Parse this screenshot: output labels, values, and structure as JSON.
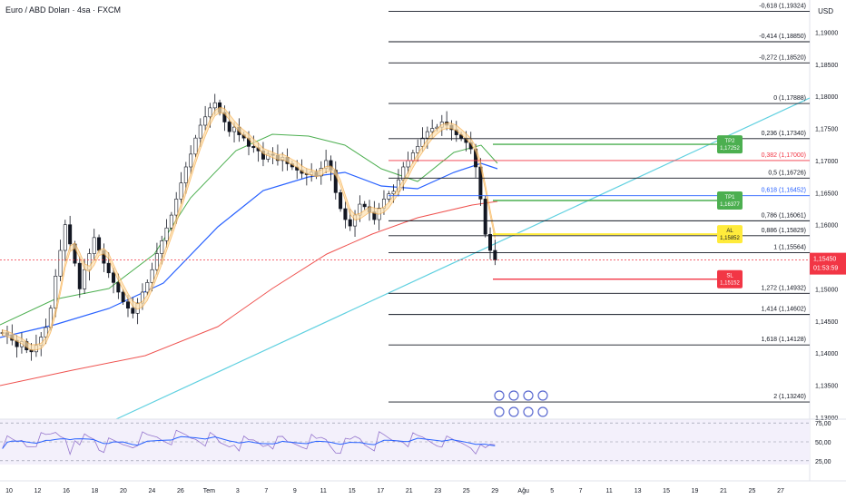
{
  "header": {
    "symbol_title": "Euro / ABD Doları · 4sa · FXCM",
    "currency": "USD"
  },
  "price_axis": {
    "ticks": [
      "1,19000",
      "1,18500",
      "1,18000",
      "1,17500",
      "1,17000",
      "1,16500",
      "1,16000",
      "1,15500",
      "1,15000",
      "1,14500",
      "1,14000",
      "1,13500",
      "1,13000"
    ],
    "current_price": "1,15450",
    "countdown": "01:53:59",
    "current_color": "#f23645"
  },
  "time_axis": {
    "labels": [
      "10",
      "12",
      "16",
      "18",
      "20",
      "24",
      "26",
      "Tem",
      "3",
      "7",
      "9",
      "11",
      "15",
      "17",
      "21",
      "23",
      "25",
      "29",
      "Ağu",
      "5",
      "7",
      "11",
      "13",
      "15",
      "19",
      "21",
      "25",
      "27"
    ]
  },
  "fib_levels": [
    {
      "label": "-0,618 (1,19324)",
      "value": 1.19324,
      "color": "#131722"
    },
    {
      "label": "-0,414 (1,18850)",
      "value": 1.1885,
      "color": "#131722"
    },
    {
      "label": "-0,272 (1,18520)",
      "value": 1.1852,
      "color": "#131722"
    },
    {
      "label": "0 (1,17888)",
      "value": 1.17888,
      "color": "#131722"
    },
    {
      "label": "0,236 (1,17340)",
      "value": 1.1734,
      "color": "#131722"
    },
    {
      "label": "0,382 (1,17000)",
      "value": 1.17,
      "color": "#f23645"
    },
    {
      "label": "0,5 (1,16726)",
      "value": 1.16726,
      "color": "#131722"
    },
    {
      "label": "0,618 (1,16452)",
      "value": 1.16452,
      "color": "#2962ff"
    },
    {
      "label": "0,786 (1,16061)",
      "value": 1.16061,
      "color": "#131722"
    },
    {
      "label": "0,886 (1,15829)",
      "value": 1.15829,
      "color": "#131722"
    },
    {
      "label": "1 (1,15564)",
      "value": 1.15564,
      "color": "#131722"
    },
    {
      "label": "1,272 (1,14932)",
      "value": 1.14932,
      "color": "#131722"
    },
    {
      "label": "1,414 (1,14602)",
      "value": 1.14602,
      "color": "#131722"
    },
    {
      "label": "1,618 (1,14128)",
      "value": 1.14128,
      "color": "#131722"
    },
    {
      "label": "2 (1,13240)",
      "value": 1.1324,
      "color": "#131722"
    }
  ],
  "trade_labels": [
    {
      "name": "tp2",
      "label": "TP2",
      "price": "1,17252",
      "value": 1.17252,
      "color": "#4caf50",
      "text_color": "#ffffff"
    },
    {
      "name": "tp1",
      "label": "TP1",
      "price": "1,16377",
      "value": 1.16377,
      "color": "#4caf50",
      "text_color": "#ffffff"
    },
    {
      "name": "al",
      "label": "AL",
      "price": "1,15852",
      "value": 1.15852,
      "color": "#ffeb3b",
      "text_color": "#131722"
    },
    {
      "name": "sl",
      "label": "SL",
      "price": "1,15152",
      "value": 1.15152,
      "color": "#f23645",
      "text_color": "#ffffff"
    }
  ],
  "rsi_axis": {
    "ticks": [
      "75,00",
      "50,00",
      "25,00"
    ]
  },
  "colors": {
    "ema_fast": "#f7a435",
    "ema_mid": "#4caf50",
    "ema_slow": "#2962ff",
    "ema_long": "#ef5350",
    "trendline": "#5fd0e0",
    "rsi": "#9575cd",
    "rsi_ma": "#2962ff"
  },
  "chart_data": {
    "type": "candlestick",
    "ylim": [
      1.13,
      1.195
    ],
    "close_series": [
      1.1432,
      1.1428,
      1.142,
      1.141,
      1.1418,
      1.1405,
      1.1402,
      1.1412,
      1.1425,
      1.144,
      1.147,
      1.152,
      1.156,
      1.16,
      1.157,
      1.154,
      1.15,
      1.153,
      1.1555,
      1.158,
      1.156,
      1.154,
      1.1525,
      1.151,
      1.1495,
      1.148,
      1.147,
      1.1462,
      1.1478,
      1.1495,
      1.151,
      1.153,
      1.1555,
      1.1575,
      1.1595,
      1.1615,
      1.164,
      1.1665,
      1.169,
      1.171,
      1.1735,
      1.1755,
      1.1768,
      1.1782,
      1.179,
      1.1775,
      1.176,
      1.1745,
      1.1752,
      1.174,
      1.1735,
      1.1722,
      1.172,
      1.1715,
      1.1702,
      1.171,
      1.1708,
      1.17,
      1.1705,
      1.1695,
      1.169,
      1.1685,
      1.168,
      1.1678,
      1.1682,
      1.1676,
      1.1688,
      1.17,
      1.1685,
      1.165,
      1.1625,
      1.1608,
      1.1598,
      1.1615,
      1.1632,
      1.1628,
      1.162,
      1.1608,
      1.1626,
      1.164,
      1.1648,
      1.1652,
      1.167,
      1.169,
      1.17,
      1.1712,
      1.1722,
      1.1735,
      1.1745,
      1.175,
      1.1752,
      1.176,
      1.1755,
      1.1748,
      1.174,
      1.1735,
      1.1728,
      1.1718,
      1.169,
      1.164,
      1.1585,
      1.156,
      1.1545
    ]
  }
}
